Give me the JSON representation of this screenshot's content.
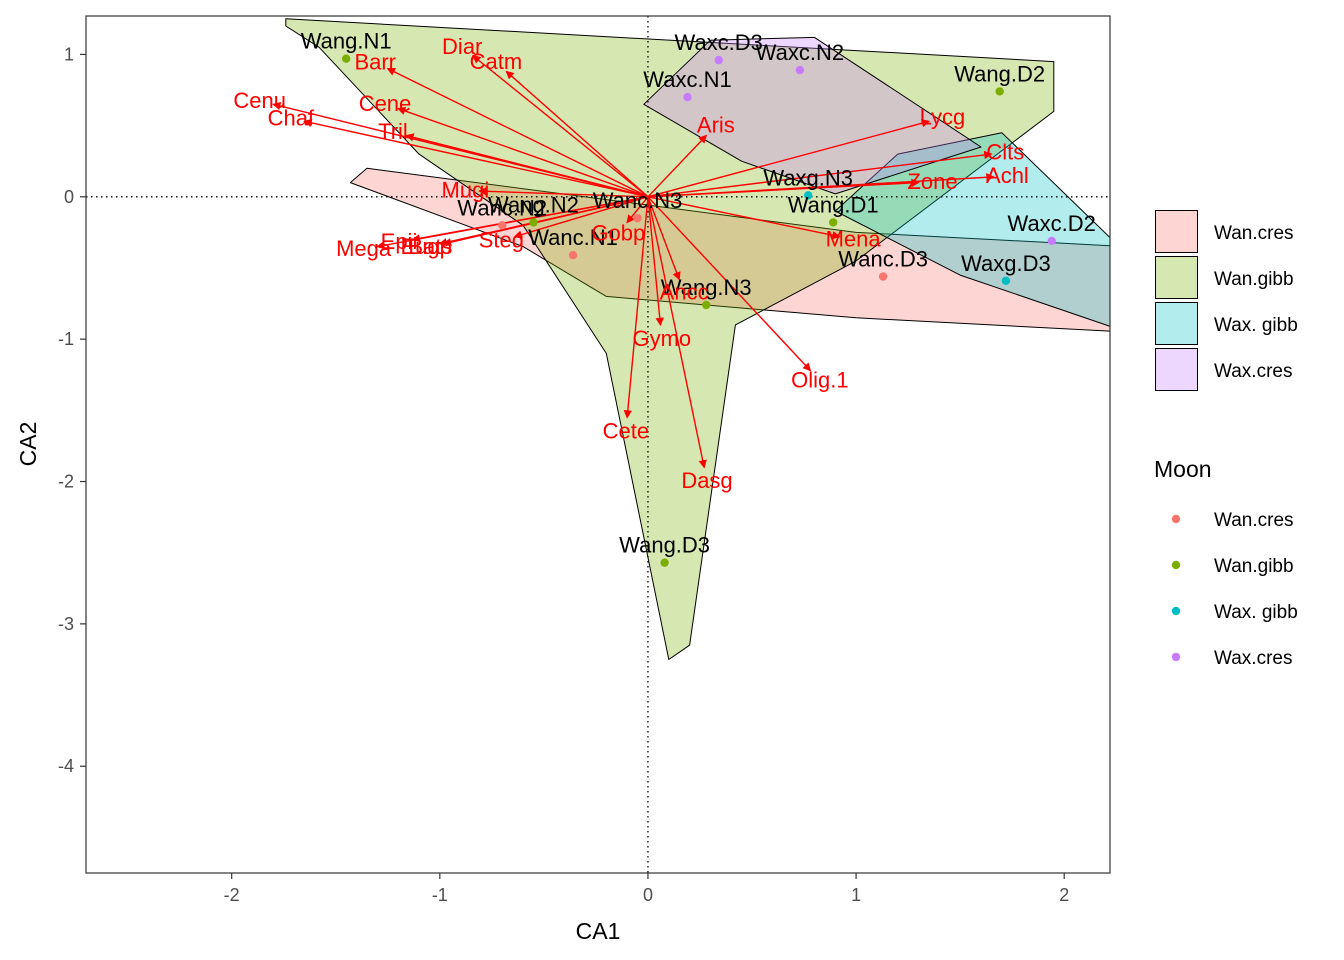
{
  "chart_data": {
    "type": "scatter",
    "title": "",
    "xlabel": "CA1",
    "ylabel": "CA2",
    "xlim": [
      -2.7,
      2.22
    ],
    "ylim": [
      -4.75,
      1.27
    ],
    "x_ticks": [
      -2,
      -1,
      0,
      1,
      2
    ],
    "y_ticks": [
      -4,
      -3,
      -2,
      -1,
      0,
      1
    ],
    "x_tick_labels": [
      "-2",
      "-1",
      "0",
      "1",
      "2"
    ],
    "y_tick_labels": [
      "-4",
      "-3",
      "-2",
      "-1",
      "0",
      "1"
    ],
    "reference_lines": {
      "x": 0,
      "y": 0,
      "style": "dotted"
    },
    "grid": false,
    "groups": [
      {
        "name": "Wan.cres",
        "color": "#F8766D",
        "fill": "#F8766D"
      },
      {
        "name": "Wan.gibb",
        "color": "#7CAE00",
        "fill": "#7CAE00"
      },
      {
        "name": "Wax. gibb",
        "color": "#00BFC4",
        "fill": "#00BFC4"
      },
      {
        "name": "Wax.cres",
        "color": "#C77CFF",
        "fill": "#C77CFF"
      }
    ],
    "hulls": [
      {
        "group": "Wan.cres",
        "points": [
          [
            -1.43,
            0.1
          ],
          [
            -0.6,
            -0.35
          ],
          [
            -0.2,
            -0.7
          ],
          [
            1.0,
            -0.85
          ],
          [
            2.3,
            -0.95
          ],
          [
            2.3,
            -0.35
          ],
          [
            1.0,
            -0.25
          ],
          [
            -1.35,
            0.2
          ]
        ]
      },
      {
        "group": "Wan.gibb",
        "points": [
          [
            -1.74,
            1.2
          ],
          [
            -1.58,
            1.05
          ],
          [
            -1.1,
            0.3
          ],
          [
            -0.6,
            -0.2
          ],
          [
            -0.2,
            -1.1
          ],
          [
            0.1,
            -3.25
          ],
          [
            0.2,
            -3.15
          ],
          [
            0.42,
            -0.9
          ],
          [
            1.0,
            -0.45
          ],
          [
            1.95,
            0.6
          ],
          [
            1.95,
            0.95
          ],
          [
            -1.74,
            1.25
          ]
        ]
      },
      {
        "group": "Wax. gibb",
        "points": [
          [
            0.9,
            -0.1
          ],
          [
            1.2,
            0.3
          ],
          [
            1.7,
            0.45
          ],
          [
            2.3,
            -0.4
          ],
          [
            2.3,
            -0.95
          ],
          [
            1.5,
            -0.55
          ]
        ]
      },
      {
        "group": "Wax.cres",
        "points": [
          [
            -0.02,
            0.65
          ],
          [
            0.3,
            1.1
          ],
          [
            0.8,
            1.12
          ],
          [
            1.6,
            0.35
          ],
          [
            0.9,
            0.02
          ],
          [
            0.45,
            0.25
          ]
        ]
      }
    ],
    "sites": [
      {
        "label": "Wang.N1",
        "x": -1.45,
        "y": 0.97,
        "group": "Wan.gibb"
      },
      {
        "label": "Wang.N2",
        "x": -0.55,
        "y": -0.18,
        "group": "Wan.gibb"
      },
      {
        "label": "Wang.N3",
        "x": 0.28,
        "y": -0.76,
        "group": "Wan.gibb"
      },
      {
        "label": "Wang.D1",
        "x": 0.89,
        "y": -0.18,
        "group": "Wan.gibb"
      },
      {
        "label": "Wang.D2",
        "x": 1.69,
        "y": 0.74,
        "group": "Wan.gibb"
      },
      {
        "label": "Wang.D3",
        "x": 0.08,
        "y": -2.57,
        "group": "Wan.gibb"
      },
      {
        "label": "Wanc.N1",
        "x": -0.36,
        "y": -0.41,
        "group": "Wan.cres"
      },
      {
        "label": "Wanc.N2",
        "x": -0.7,
        "y": -0.2,
        "group": "Wan.cres"
      },
      {
        "label": "Wanc.N3",
        "x": -0.05,
        "y": -0.15,
        "group": "Wan.cres"
      },
      {
        "label": "Wanc.D3",
        "x": 1.13,
        "y": -0.56,
        "group": "Wan.cres"
      },
      {
        "label": "Waxc.N1",
        "x": 0.19,
        "y": 0.7,
        "group": "Wax.cres"
      },
      {
        "label": "Waxc.N2",
        "x": 0.73,
        "y": 0.89,
        "group": "Wax.cres"
      },
      {
        "label": "Waxc.D3",
        "x": 0.34,
        "y": 0.96,
        "group": "Wax.cres"
      },
      {
        "label": "Waxc.D2",
        "x": 1.94,
        "y": -0.31,
        "group": "Wax.cres"
      },
      {
        "label": "Waxg.N3",
        "x": 0.77,
        "y": 0.01,
        "group": "Wax. gibb"
      },
      {
        "label": "Waxg.D3",
        "x": 1.72,
        "y": -0.59,
        "group": "Wax. gibb"
      }
    ],
    "species": [
      {
        "label": "Cenu",
        "x": -1.8,
        "y": 0.65
      },
      {
        "label": "Chaf",
        "x": -1.65,
        "y": 0.53
      },
      {
        "label": "Cene",
        "x": -1.2,
        "y": 0.62
      },
      {
        "label": "Barr",
        "x": -1.25,
        "y": 0.9
      },
      {
        "label": "Diar",
        "x": -0.84,
        "y": 0.99
      },
      {
        "label": "Catm",
        "x": -0.68,
        "y": 0.88
      },
      {
        "label": "Tril",
        "x": -1.16,
        "y": 0.43
      },
      {
        "label": "Mugi",
        "x": -0.81,
        "y": 0.04
      },
      {
        "label": "Steg",
        "x": -0.64,
        "y": -0.28
      },
      {
        "label": "Eugp",
        "x": -1.0,
        "y": -0.33
      },
      {
        "label": "Mega",
        "x": -1.3,
        "y": -0.35
      },
      {
        "label": "Epii",
        "x": -1.13,
        "y": -0.3
      },
      {
        "label": "Bats",
        "x": -0.98,
        "y": -0.33
      },
      {
        "label": "Gobp",
        "x": -0.1,
        "y": -0.18
      },
      {
        "label": "Aris",
        "x": 0.28,
        "y": 0.43
      },
      {
        "label": "Mena",
        "x": 0.92,
        "y": -0.28
      },
      {
        "label": "Ancc",
        "x": 0.15,
        "y": -0.58
      },
      {
        "label": "Gymo",
        "x": 0.06,
        "y": -0.9
      },
      {
        "label": "Olig.1",
        "x": 0.78,
        "y": -1.22
      },
      {
        "label": "Cete",
        "x": -0.1,
        "y": -1.55
      },
      {
        "label": "Dasg",
        "x": 0.27,
        "y": -1.9
      },
      {
        "label": "Lycg",
        "x": 1.35,
        "y": 0.53
      },
      {
        "label": "Clts",
        "x": 1.65,
        "y": 0.3
      },
      {
        "label": "Zone",
        "x": 1.3,
        "y": 0.1
      },
      {
        "label": "Achl",
        "x": 1.66,
        "y": 0.14
      }
    ]
  },
  "legends": [
    {
      "title": "",
      "kind": "fill",
      "items": [
        "Wan.cres",
        "Wan.gibb",
        "Wax. gibb",
        "Wax.cres"
      ]
    },
    {
      "title": "Moon",
      "kind": "point",
      "items": [
        "Wan.cres",
        "Wan.gibb",
        "Wax. gibb",
        "Wax.cres"
      ]
    }
  ],
  "colors": {
    "arrow": "#ff0000",
    "species_text": "#ff0000",
    "site_text": "#000000",
    "panel_border": "#333333"
  }
}
